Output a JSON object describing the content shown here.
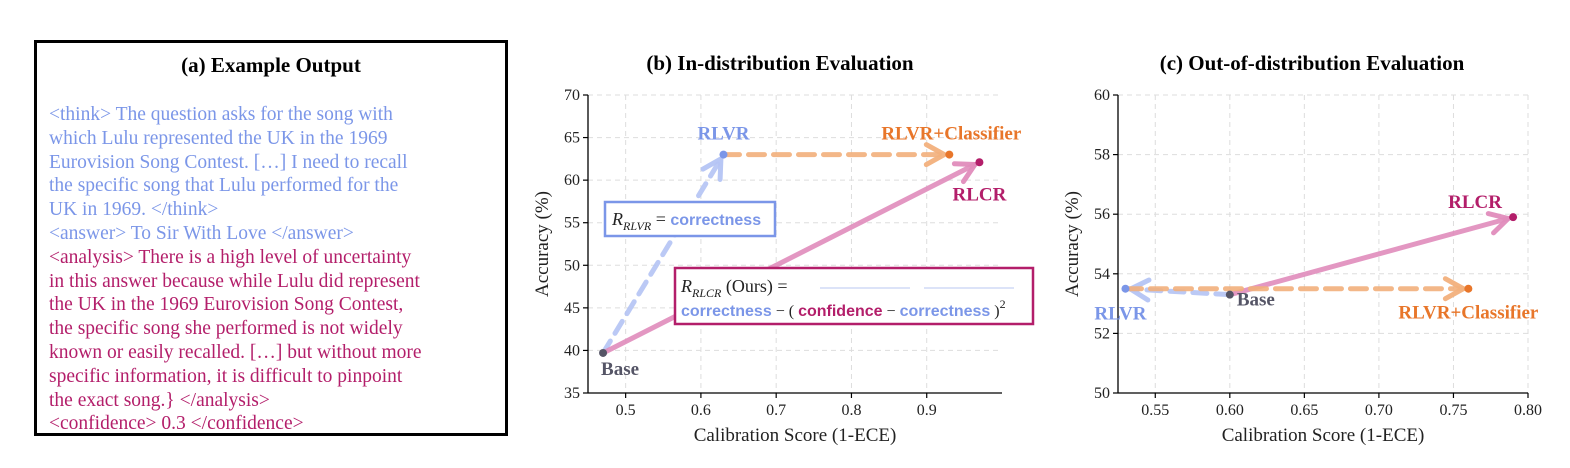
{
  "example": {
    "title": "(a) Example Output",
    "lines": [
      {
        "text": "<think> The question asks for the song with",
        "color": "blue"
      },
      {
        "text": "which Lulu represented the UK in the 1969",
        "color": "blue"
      },
      {
        "text": "Eurovision Song Contest. […] I need to recall",
        "color": "blue"
      },
      {
        "text": "the specific song that Lulu performed for the",
        "color": "blue"
      },
      {
        "text": "UK in 1969. </think>",
        "color": "blue"
      },
      {
        "text": "<answer> To Sir With Love </answer>",
        "color": "blue"
      },
      {
        "text": "<analysis> There is a high level of uncertainty",
        "color": "pink"
      },
      {
        "text": "in this answer because while Lulu did represent",
        "color": "pink"
      },
      {
        "text": "the UK in the 1969 Eurovision Song Contest,",
        "color": "pink"
      },
      {
        "text": "the specific song she performed is not widely",
        "color": "pink"
      },
      {
        "text": "known or easily recalled. […] but without more",
        "color": "pink"
      },
      {
        "text": "specific information, it is difficult to pinpoint",
        "color": "pink"
      },
      {
        "text": "the exact song.} </analysis>",
        "color": "pink"
      },
      {
        "text": "<confidence> 0.3 </confidence>",
        "color": "pink"
      }
    ]
  },
  "colors": {
    "blue": "#7b96e8",
    "pink": "#b31e6a",
    "orange": "#e8762a",
    "rlcr_arrow": "#e08cbc",
    "rlvr_arrow": "#b4c4f4",
    "classifier_arrow": "#f2b07c",
    "base_point": "#555566"
  },
  "formulas": {
    "rlvr": {
      "R": "R",
      "sub": "RLVR",
      "eq": " = ",
      "term": "correctness"
    },
    "rlcr": {
      "R": "R",
      "sub": "RLCR",
      "ours": " (Ours) = ",
      "line2_a": "correctness",
      "minus": " − ( ",
      "conf": "confidence",
      "minus2": " − ",
      "corr": "correctness",
      "close": " )",
      "sup": "2"
    }
  },
  "chart_data": [
    {
      "type": "scatter",
      "title": "(b) In-distribution Evaluation",
      "xlabel": "Calibration Score (1-ECE)",
      "ylabel": "Accuracy (%)",
      "xlim": [
        0.45,
        1.0
      ],
      "ylim": [
        35,
        70
      ],
      "xticks": [
        0.5,
        0.6,
        0.7,
        0.8,
        0.9
      ],
      "xtick_labels": [
        "0.5",
        "0.6",
        "0.7",
        "0.8",
        "0.9"
      ],
      "yticks": [
        35,
        40,
        45,
        50,
        55,
        60,
        65,
        70
      ],
      "ytick_labels": [
        "35",
        "40",
        "45",
        "50",
        "55",
        "60",
        "65",
        "70"
      ],
      "grid": true,
      "points": [
        {
          "name": "Base",
          "x": 0.47,
          "y": 39.7
        },
        {
          "name": "RLVR",
          "x": 0.63,
          "y": 63.0
        },
        {
          "name": "RLVR+Classifier",
          "x": 0.93,
          "y": 63.0
        },
        {
          "name": "RLCR",
          "x": 0.97,
          "y": 62.1
        }
      ],
      "arrows": [
        {
          "from": "Base",
          "to": "RLVR"
        },
        {
          "from": "Base",
          "to": "RLCR"
        },
        {
          "from": "RLVR",
          "to": "RLVR+Classifier"
        }
      ]
    },
    {
      "type": "scatter",
      "title": "(c) Out-of-distribution Evaluation",
      "xlabel": "Calibration Score (1-ECE)",
      "ylabel": "Accuracy (%)",
      "xlim": [
        0.525,
        0.8
      ],
      "ylim": [
        50,
        60
      ],
      "xticks": [
        0.55,
        0.6,
        0.65,
        0.7,
        0.75,
        0.8
      ],
      "xtick_labels": [
        "0.55",
        "0.60",
        "0.65",
        "0.70",
        "0.75",
        "0.80"
      ],
      "yticks": [
        50,
        52,
        54,
        56,
        58,
        60
      ],
      "ytick_labels": [
        "50",
        "52",
        "54",
        "56",
        "58",
        "60"
      ],
      "grid": true,
      "points": [
        {
          "name": "Base",
          "x": 0.6,
          "y": 53.3
        },
        {
          "name": "RLVR",
          "x": 0.53,
          "y": 53.5
        },
        {
          "name": "RLVR+Classifier",
          "x": 0.76,
          "y": 53.5
        },
        {
          "name": "RLCR",
          "x": 0.79,
          "y": 55.9
        }
      ],
      "arrows": [
        {
          "from": "Base",
          "to": "RLVR"
        },
        {
          "from": "Base",
          "to": "RLCR"
        },
        {
          "from": "RLVR",
          "to": "RLVR+Classifier"
        }
      ]
    }
  ]
}
